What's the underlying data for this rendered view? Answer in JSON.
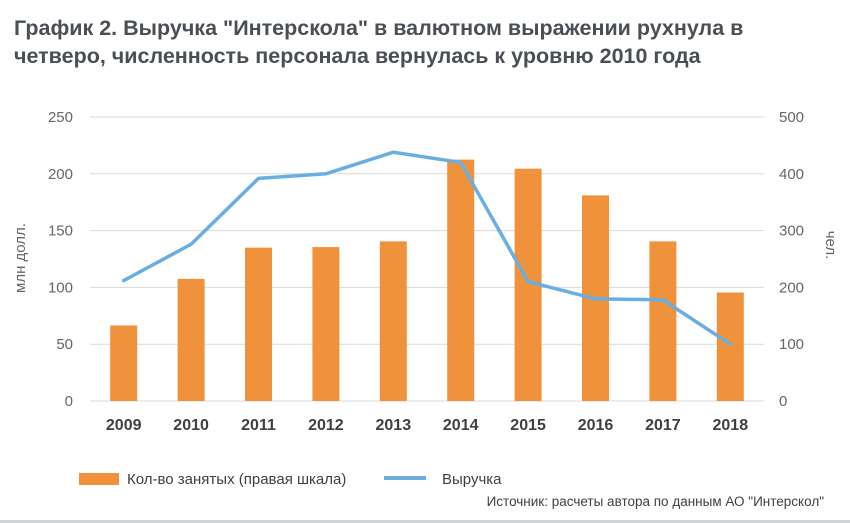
{
  "title": "График 2. Выручка \"Интерскола\" в валютном выражении рухнула в четверо, численность персонала вернулась к уровню 2010 года",
  "source": "Источник: расчеты автора по данным АО \"Интерскол\"",
  "colors": {
    "bars": "#f0923c",
    "line": "#6aaee0",
    "grid": "#d9d9d9",
    "text": "#595959"
  },
  "chart_data": {
    "type": "bar+line",
    "categories": [
      "2009",
      "2010",
      "2011",
      "2012",
      "2013",
      "2014",
      "2015",
      "2016",
      "2017",
      "2018"
    ],
    "series": [
      {
        "name": "Кол-во занятых (правая шкала)",
        "type": "bar",
        "axis": "right",
        "values": [
          133,
          215,
          270,
          271,
          281,
          425,
          409,
          362,
          281,
          191
        ]
      },
      {
        "name": "Выручка",
        "type": "line",
        "axis": "left",
        "values": [
          106,
          138,
          196,
          200,
          219,
          210,
          105,
          90,
          89,
          50
        ]
      }
    ],
    "y_left": {
      "label": "млн долл.",
      "ticks": [
        "250",
        "200",
        "150",
        "100",
        "50",
        "0"
      ],
      "min": 0,
      "max": 250
    },
    "y_right": {
      "label": "чел.",
      "ticks": [
        "500",
        "400",
        "300",
        "200",
        "100",
        "0"
      ],
      "min": 0,
      "max": 500
    },
    "grid": true,
    "legend_position": "bottom-left"
  }
}
